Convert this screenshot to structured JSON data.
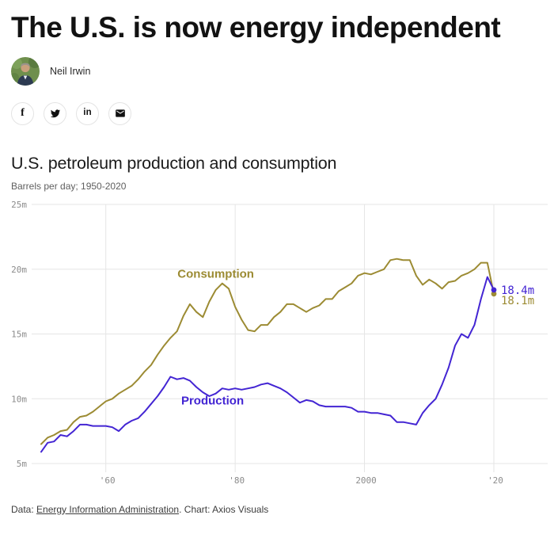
{
  "header": {
    "headline": "The U.S. is now energy independent",
    "author": "Neil Irwin"
  },
  "social": {
    "facebook_glyph": "f",
    "linkedin_glyph": "in",
    "items": [
      "facebook",
      "twitter",
      "linkedin",
      "email"
    ]
  },
  "footer": {
    "prefix": "Data: ",
    "link": "Energy Information Administration",
    "suffix": ". Chart: Axios Visuals"
  },
  "chart_data": {
    "type": "line",
    "title": "U.S. petroleum production and consumption",
    "subtitle": "Barrels per day; 1950-2020",
    "unit": "million barrels per day",
    "x_start": 1950,
    "x_end": 2020,
    "ylim": [
      5,
      25
    ],
    "grid": true,
    "grid_color": "#e5e5e5",
    "tick_color": "#8b8b8b",
    "legend_position": "inline",
    "yticks": [
      {
        "value": 25,
        "label": "25m"
      },
      {
        "value": 20,
        "label": "20m"
      },
      {
        "value": 15,
        "label": "15m"
      },
      {
        "value": 10,
        "label": "10m"
      },
      {
        "value": 5,
        "label": "5m"
      }
    ],
    "xticks": [
      {
        "value": 1960,
        "label": "'60"
      },
      {
        "value": 1980,
        "label": "'80"
      },
      {
        "value": 2000,
        "label": "2000"
      },
      {
        "value": 2020,
        "label": "'20"
      }
    ],
    "series": [
      {
        "name": "Consumption",
        "color": "#9c8b33",
        "end_label": "18.1m",
        "label_anchor": {
          "year": 1977,
          "value": 19.35
        },
        "values": [
          6.5,
          7.0,
          7.2,
          7.5,
          7.6,
          8.2,
          8.6,
          8.7,
          9.0,
          9.4,
          9.8,
          10.0,
          10.4,
          10.7,
          11.0,
          11.5,
          12.1,
          12.6,
          13.4,
          14.1,
          14.7,
          15.2,
          16.4,
          17.3,
          16.7,
          16.3,
          17.5,
          18.4,
          18.9,
          18.5,
          17.1,
          16.1,
          15.3,
          15.2,
          15.7,
          15.7,
          16.3,
          16.7,
          17.3,
          17.3,
          17.0,
          16.7,
          17.0,
          17.2,
          17.7,
          17.7,
          18.3,
          18.6,
          18.9,
          19.5,
          19.7,
          19.6,
          19.8,
          20.0,
          20.7,
          20.8,
          20.7,
          20.7,
          19.5,
          18.8,
          19.2,
          18.9,
          18.5,
          19.0,
          19.1,
          19.5,
          19.7,
          20.0,
          20.5,
          20.5,
          18.1
        ]
      },
      {
        "name": "Production",
        "color": "#4325d3",
        "end_label": "18.4m",
        "label_anchor": {
          "year": 1976.5,
          "value": 9.55
        },
        "values": [
          5.9,
          6.6,
          6.7,
          7.2,
          7.1,
          7.5,
          8.0,
          8.0,
          7.9,
          7.9,
          7.9,
          7.8,
          7.5,
          8.0,
          8.3,
          8.5,
          9.0,
          9.6,
          10.2,
          10.9,
          11.7,
          11.5,
          11.6,
          11.4,
          10.9,
          10.5,
          10.2,
          10.4,
          10.8,
          10.7,
          10.8,
          10.7,
          10.8,
          10.9,
          11.1,
          11.2,
          11.0,
          10.8,
          10.5,
          10.1,
          9.7,
          9.9,
          9.8,
          9.5,
          9.4,
          9.4,
          9.4,
          9.4,
          9.3,
          9.0,
          9.0,
          8.9,
          8.9,
          8.8,
          8.7,
          8.2,
          8.2,
          8.1,
          8.0,
          8.9,
          9.5,
          10.0,
          11.1,
          12.4,
          14.1,
          15.0,
          14.7,
          15.7,
          17.7,
          19.4,
          18.4
        ]
      }
    ]
  }
}
